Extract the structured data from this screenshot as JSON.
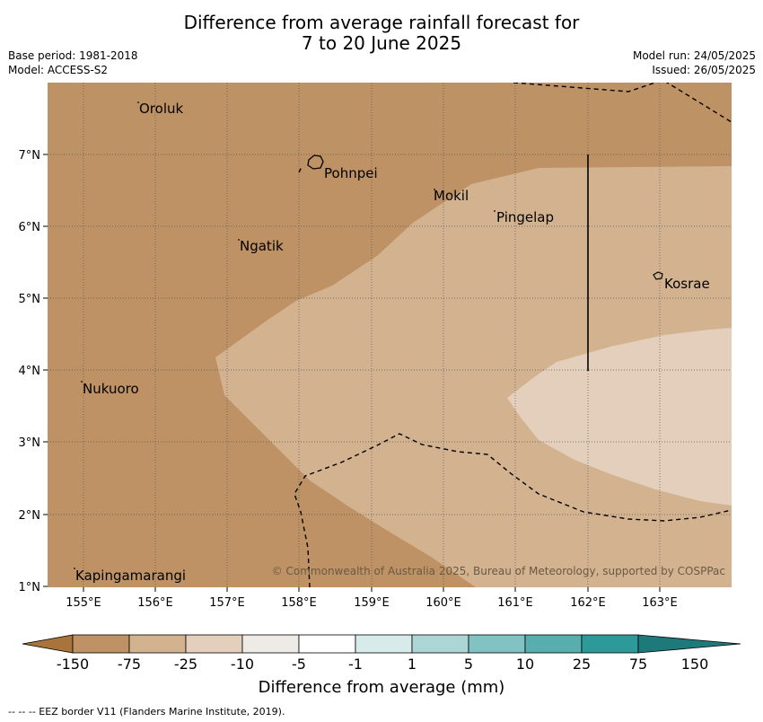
{
  "title_line1": "Difference from average rainfall forecast for",
  "title_line2": "7 to 20 June 2025",
  "base_period": "Base period: 1981-2018",
  "model": "Model: ACCESS-S2",
  "model_run": "Model run: 24/05/2025",
  "issued": "Issued: 26/05/2025",
  "copyright": "© Commonwealth of Australia 2025, Bureau of Meteorology, supported by COSPPac",
  "lat_ticks": [
    "7°N",
    "6°N",
    "5°N",
    "4°N",
    "3°N",
    "2°N",
    "1°N"
  ],
  "lon_ticks": [
    "155°E",
    "156°E",
    "157°E",
    "158°E",
    "159°E",
    "160°E",
    "161°E",
    "162°E",
    "163°E"
  ],
  "places": [
    "Oroluk",
    "Pohnpei",
    "Mokil",
    "Pingelap",
    "Ngatik",
    "Kosrae",
    "Nukuoro",
    "Kapingamarangi"
  ],
  "colorbar": {
    "title": "Difference from average (mm)",
    "labels": [
      "-150",
      "-75",
      "-25",
      "-10",
      "-5",
      "-1",
      "1",
      "5",
      "10",
      "25",
      "75",
      "150"
    ],
    "colors": [
      "#a9743b",
      "#be9264",
      "#d2b28f",
      "#e3cfbb",
      "#eeebe7",
      "#ffffff",
      "#d6ebea",
      "#acd6d6",
      "#82c2c2",
      "#58adad",
      "#2e9999",
      "#1e7a7a"
    ]
  },
  "footer": "--  --  -- EEZ border V11 (Flanders Marine Institute, 2019)."
}
